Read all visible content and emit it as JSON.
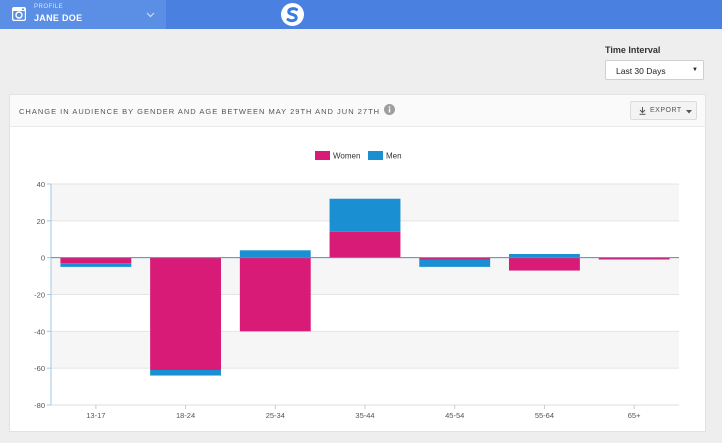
{
  "topbar": {
    "profile_label": "PROFILE",
    "profile_name": "JANE DOE",
    "accent": "#4a80e0"
  },
  "time_interval": {
    "label": "Time Interval",
    "selected": "Last 30 Days"
  },
  "card": {
    "title": "CHANGE IN AUDIENCE BY GENDER AND AGE BETWEEN MAY 29TH AND JUN 27TH",
    "export_label": "EXPORT"
  },
  "chart_data": {
    "type": "bar",
    "stacked": true,
    "categories": [
      "13-17",
      "18-24",
      "25-34",
      "35-44",
      "45-54",
      "55-64",
      "65+"
    ],
    "series": [
      {
        "name": "Women",
        "color": "#d81b77",
        "values": [
          -3,
          -61,
          -40,
          14,
          -1,
          -7,
          -1
        ]
      },
      {
        "name": "Men",
        "color": "#1a8fd1",
        "values": [
          -2,
          -3,
          4,
          18,
          -4,
          2,
          0
        ]
      }
    ],
    "ylim": [
      -80,
      40
    ],
    "yticks": [
      40,
      20,
      0,
      -20,
      -40,
      -60,
      -80
    ],
    "grid": true,
    "legend": "top-center"
  }
}
